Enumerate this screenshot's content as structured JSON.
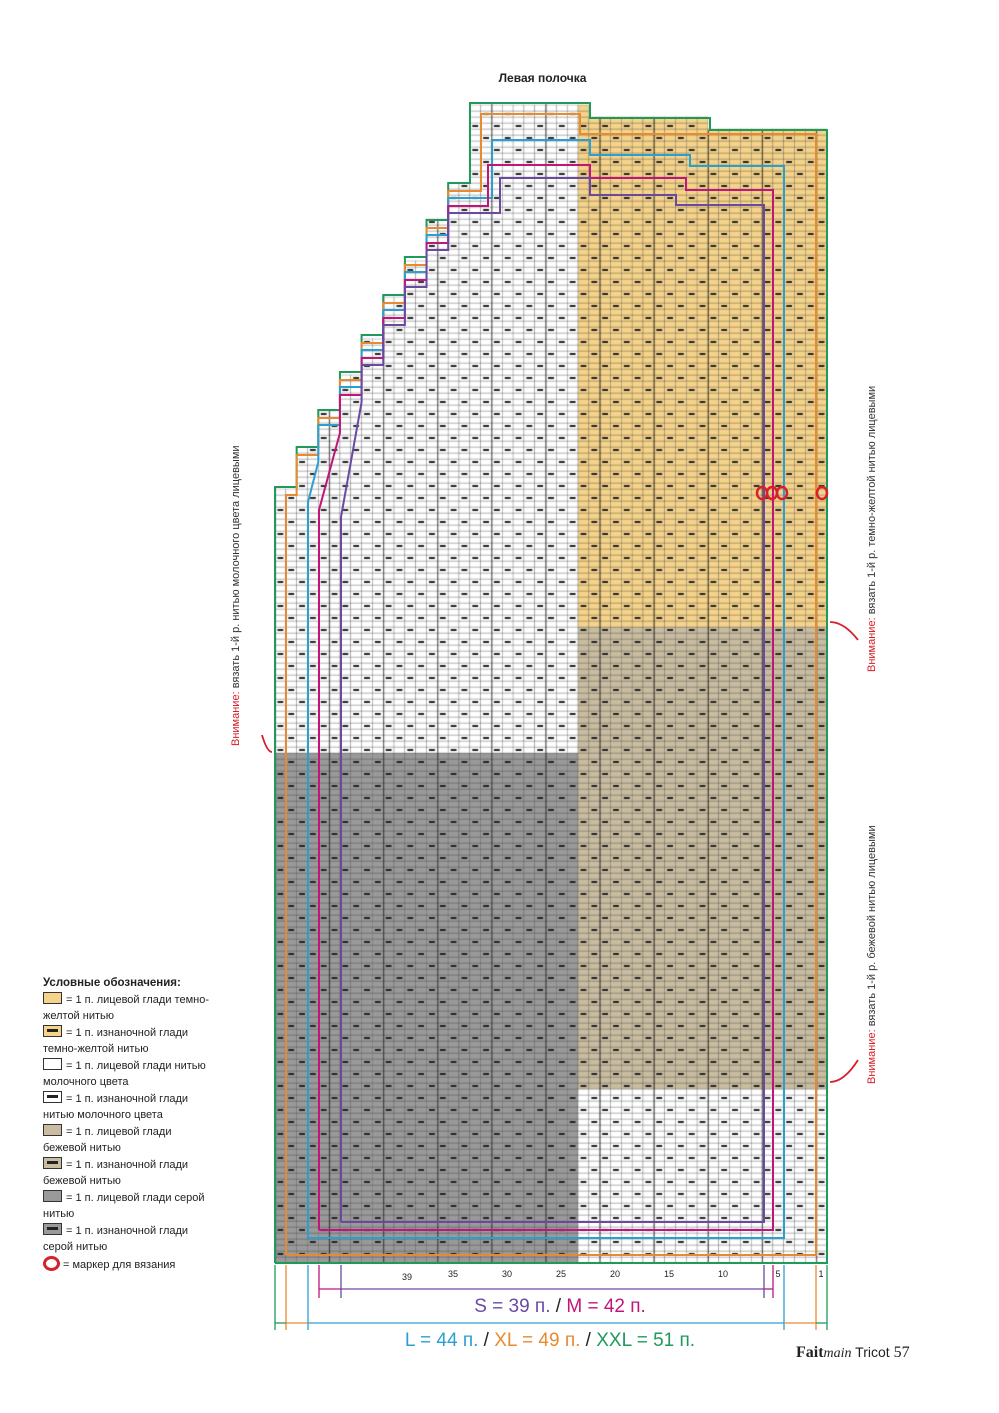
{
  "title": "Левая полочка",
  "notes": {
    "left": {
      "warn": "Внимание:",
      "text": " вязать 1-й р. нитью молочного цвета лицевыми"
    },
    "right_top": {
      "warn": "Внимание:",
      "text": " вязать 1-й р. темно-желтой нитью лицевыми"
    },
    "right_bottom": {
      "warn": "Внимание:",
      "text": " вязать 1-й р. бежевой нитью лицевыми"
    }
  },
  "column_numbers": [
    "39",
    "35",
    "30",
    "25",
    "20",
    "15",
    "10",
    "5",
    "1"
  ],
  "sizes": {
    "s": "S = 39 п.",
    "sep1": " / ",
    "m": "M = 42 п.",
    "l": "L = 44 п.",
    "sep2": " / ",
    "xl": "XL = 49 п.",
    "sep3": " / ",
    "xxl": "XXL = 51 п."
  },
  "legend": {
    "heading": "Условные обозначения:",
    "items": [
      {
        "label": "= 1 п. лицевой глади темно-желтой нитью",
        "color": "#f5d38a",
        "purl": false
      },
      {
        "label": "= 1 п. изнаночной глади темно-желтой нитью",
        "color": "#f5d38a",
        "purl": true
      },
      {
        "label": "= 1 п. лицевой глади нитью молочного цвета",
        "color": "#ffffff",
        "purl": false
      },
      {
        "label": "= 1 п. изнаночной глади нитью молочного цвета",
        "color": "#ffffff",
        "purl": true
      },
      {
        "label": "= 1 п. лицевой глади бежевой нитью",
        "color": "#c9bca0",
        "purl": false
      },
      {
        "label": "= 1 п. изнаночной глади бежевой нитью",
        "color": "#c9bca0",
        "purl": true
      },
      {
        "label": "= 1 п. лицевой глади серой нитью",
        "color": "#9a9a9a",
        "purl": false
      },
      {
        "label": "= 1 п. изнаночной глади серой нитью",
        "color": "#9a9a9a",
        "purl": true
      }
    ],
    "marker_label": "= маркер для вязания"
  },
  "footer": {
    "brand": "Fait",
    "brand_italic": "main",
    "magazine": " Tricot",
    "page": "57"
  },
  "colors": {
    "yellow": "#f5d38a",
    "milk": "#ffffff",
    "beige": "#c9bca0",
    "grey": "#9a9a9a",
    "s": "#6a4aa0",
    "m": "#c0157a",
    "l": "#2aa0d0",
    "xl": "#e88a30",
    "xxl": "#1f9a5a",
    "warn": "#d6202a"
  }
}
